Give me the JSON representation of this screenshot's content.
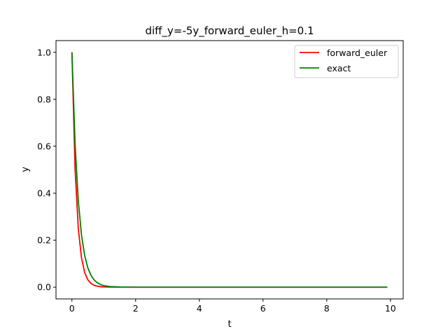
{
  "chart_data": {
    "type": "line",
    "title": "diff_y=-5y_forward_euler_h=0.1",
    "xlabel": "t",
    "ylabel": "y",
    "xlim": [
      -0.5,
      10.4
    ],
    "ylim": [
      -0.05,
      1.05
    ],
    "xticks": [
      0,
      2,
      4,
      6,
      8,
      10
    ],
    "xtick_labels": [
      "0",
      "2",
      "4",
      "6",
      "8",
      "10"
    ],
    "yticks": [
      0.0,
      0.2,
      0.4,
      0.6,
      0.8,
      1.0
    ],
    "ytick_labels": [
      "0.0",
      "0.2",
      "0.4",
      "0.6",
      "0.8",
      "1.0"
    ],
    "grid": false,
    "legend": "top-right",
    "series": [
      {
        "name": "forward_euler",
        "color": "#ff0000",
        "x": [
          0.0,
          0.1,
          0.2,
          0.3,
          0.4,
          0.5,
          0.6,
          0.7,
          0.8,
          0.9,
          1.0,
          1.2,
          1.5,
          2.0,
          3.0,
          4.0,
          5.0,
          6.0,
          7.0,
          8.0,
          9.0,
          9.9
        ],
        "y": [
          1.0,
          0.5,
          0.25,
          0.125,
          0.0625,
          0.03125,
          0.0156,
          0.0078,
          0.0039,
          0.002,
          0.001,
          0.0002,
          0.0,
          0.0,
          0.0,
          0.0,
          0.0,
          0.0,
          0.0,
          0.0,
          0.0,
          0.0
        ]
      },
      {
        "name": "exact",
        "color": "#008000",
        "x": [
          0.0,
          0.1,
          0.2,
          0.3,
          0.4,
          0.5,
          0.6,
          0.7,
          0.8,
          0.9,
          1.0,
          1.2,
          1.5,
          2.0,
          3.0,
          4.0,
          5.0,
          6.0,
          7.0,
          8.0,
          9.0,
          9.9
        ],
        "y": [
          1.0,
          0.6065,
          0.3679,
          0.2231,
          0.1353,
          0.0821,
          0.0498,
          0.0302,
          0.0183,
          0.0111,
          0.0067,
          0.0025,
          0.0006,
          0.0,
          0.0,
          0.0,
          0.0,
          0.0,
          0.0,
          0.0,
          0.0,
          0.0
        ]
      }
    ]
  }
}
